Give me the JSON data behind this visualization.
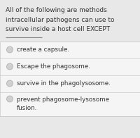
{
  "bg_color": "#e8e8e8",
  "title_lines": [
    "All of the following are methods",
    "intracellular pathogens can use to",
    "survive inside a host cell EXCEPT"
  ],
  "title_color": "#333333",
  "title_fontsize": 6.5,
  "underline_color": "#888888",
  "options": [
    "create a capsule.",
    "Escape the phagosome.",
    "survive in the phagolysosome.",
    "prevent phagosome-lysosome\nfusion."
  ],
  "option_bg": "#f5f5f5",
  "option_border": "#cccccc",
  "option_text_color": "#333333",
  "option_fontsize": 6.3,
  "radio_face": "#d0d0d0",
  "radio_edge": "#aaaaaa"
}
